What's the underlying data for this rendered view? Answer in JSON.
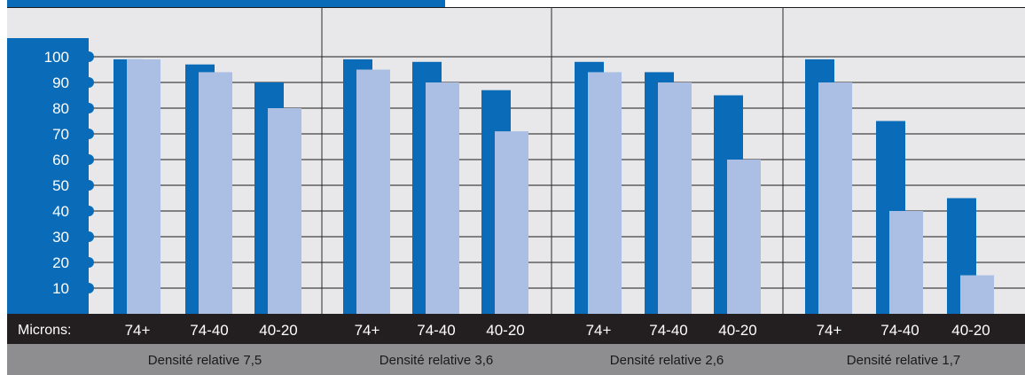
{
  "colors": {
    "dark_series": "#0a6cb8",
    "light_series": "#aabfe3",
    "plot_bg": "#e8e8ea",
    "axis_band": "#231f20",
    "footer_band": "#8e8e90",
    "tab": "#0a6cb8"
  },
  "chart_data": {
    "type": "bar",
    "xlabel": "Microns:",
    "ylim": [
      0,
      100
    ],
    "y_ticks": [
      10,
      20,
      30,
      40,
      50,
      60,
      70,
      80,
      90,
      100
    ],
    "grid": true,
    "groups": [
      {
        "label": "Densité relative 7,5",
        "categories": [
          "74+",
          "74-40",
          "40-20"
        ],
        "series": [
          {
            "values": [
              99,
              97,
              90
            ]
          },
          {
            "values": [
              99,
              94,
              80
            ]
          }
        ]
      },
      {
        "label": "Densité relative 3,6",
        "categories": [
          "74+",
          "74-40",
          "40-20"
        ],
        "series": [
          {
            "values": [
              99,
              98,
              87
            ]
          },
          {
            "values": [
              95,
              90,
              71
            ]
          }
        ]
      },
      {
        "label": "Densité relative 2,6",
        "categories": [
          "74+",
          "74-40",
          "40-20"
        ],
        "series": [
          {
            "values": [
              98,
              94,
              85
            ]
          },
          {
            "values": [
              94,
              90,
              60
            ]
          }
        ]
      },
      {
        "label": "Densité relative 1,7",
        "categories": [
          "74+",
          "74-40",
          "40-20"
        ],
        "series": [
          {
            "values": [
              99,
              75,
              45
            ]
          },
          {
            "values": [
              90,
              40,
              15
            ]
          }
        ]
      }
    ]
  }
}
